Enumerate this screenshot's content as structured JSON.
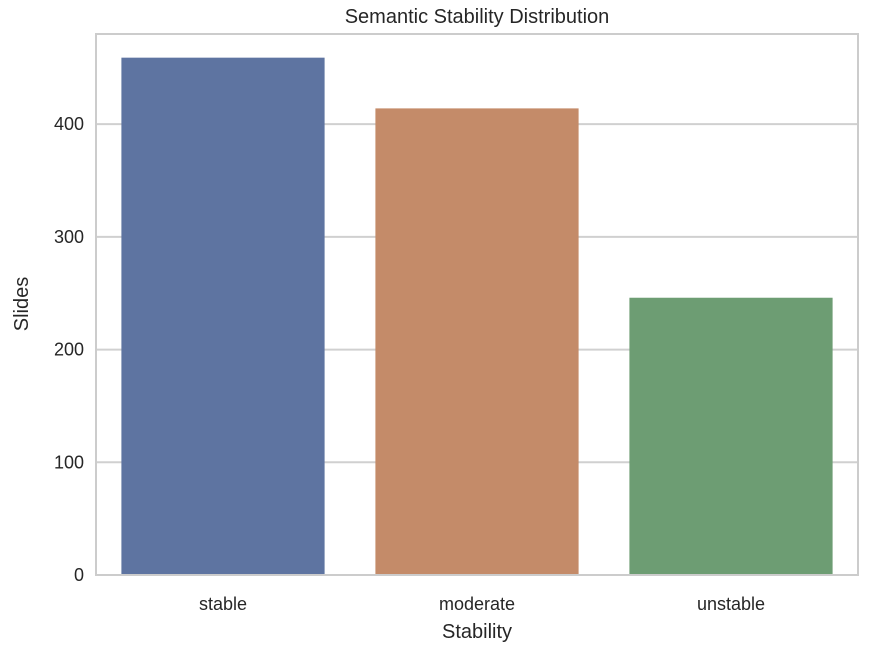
{
  "chart_data": {
    "type": "bar",
    "title": "Semantic Stability Distribution",
    "xlabel": "Stability",
    "ylabel": "Slides",
    "categories": [
      "stable",
      "moderate",
      "unstable"
    ],
    "values": [
      459,
      414,
      246
    ],
    "colors": [
      "#5e74a1",
      "#c48b69",
      "#6d9d73"
    ],
    "ylim": [
      0,
      480
    ],
    "yticks": [
      0,
      100,
      200,
      300,
      400
    ],
    "grid": true,
    "grid_color": "#d0d0d0",
    "frame_color": "#cccccc"
  }
}
